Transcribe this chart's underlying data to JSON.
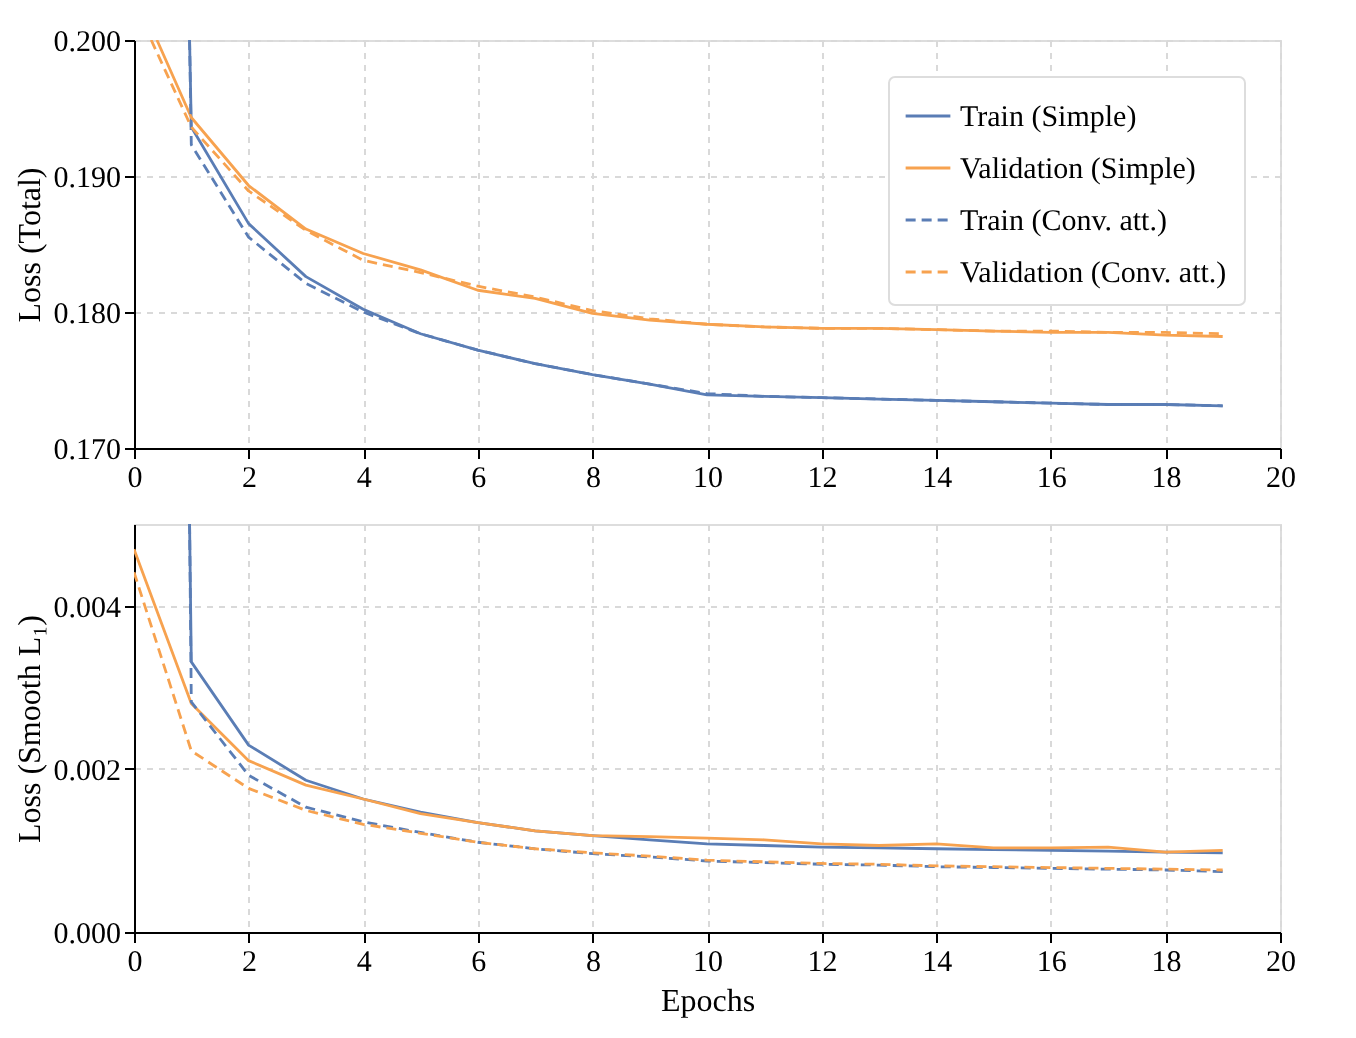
{
  "chart_data": [
    {
      "type": "line",
      "ylabel": "Loss (Total)",
      "xlim": [
        0,
        20
      ],
      "xticks": [
        0,
        2,
        4,
        6,
        8,
        10,
        12,
        14,
        16,
        18,
        20
      ],
      "ylim": [
        0.17,
        0.2
      ],
      "yticks": [
        {
          "value": 0.17,
          "label": "0.170"
        },
        {
          "value": 0.18,
          "label": "0.180"
        },
        {
          "value": 0.19,
          "label": "0.190"
        },
        {
          "value": 0.2,
          "label": "0.200"
        }
      ],
      "grid": true,
      "legend": "top right",
      "marker": "none",
      "series": [
        {
          "name": "Train (Simple)",
          "color": "#5a7db5",
          "line_style": "solid",
          "x": [
            0.97,
            1,
            2,
            3,
            4,
            5,
            6,
            7,
            8,
            9,
            10,
            11,
            12,
            13,
            14,
            15,
            16,
            17,
            18,
            19
          ],
          "values": [
            0.2,
            0.1936,
            0.1865,
            0.1826,
            0.1802,
            0.1784,
            0.1772,
            0.1762,
            0.1754,
            0.1747,
            0.1739,
            0.1738,
            0.1737,
            0.1736,
            0.1735,
            0.1734,
            0.1733,
            0.1732,
            0.1732,
            0.1731
          ]
        },
        {
          "name": "Validation (Simple)",
          "color": "#f7a24f",
          "line_style": "solid",
          "x": [
            0.4,
            1,
            2,
            3,
            4,
            5,
            6,
            7,
            8,
            9,
            10,
            11,
            12,
            13,
            14,
            15,
            16,
            17,
            18,
            19
          ],
          "values": [
            0.2,
            0.1943,
            0.1893,
            0.1861,
            0.1843,
            0.1831,
            0.1816,
            0.181,
            0.1799,
            0.1794,
            0.1791,
            0.1789,
            0.1788,
            0.1788,
            0.1787,
            0.1786,
            0.1785,
            0.1785,
            0.1783,
            0.1782
          ]
        },
        {
          "name": "Train (Conv. att.)",
          "color": "#5a7db5",
          "line_style": "dashed",
          "x": [
            0.97,
            1,
            2,
            3,
            4,
            5,
            6,
            7,
            8,
            9,
            10,
            11,
            12,
            13,
            14,
            15,
            16,
            17,
            18,
            19
          ],
          "values": [
            0.2,
            0.1923,
            0.1855,
            0.1821,
            0.18,
            0.1784,
            0.1772,
            0.1762,
            0.1754,
            0.1747,
            0.174,
            0.1738,
            0.1737,
            0.1736,
            0.1735,
            0.1734,
            0.1733,
            0.1732,
            0.1732,
            0.1731
          ]
        },
        {
          "name": "Validation (Conv. att.)",
          "color": "#f7a24f",
          "line_style": "dashed",
          "x": [
            0.3,
            1,
            2,
            3,
            4,
            5,
            6,
            7,
            8,
            9,
            10,
            11,
            12,
            13,
            14,
            15,
            16,
            17,
            18,
            19
          ],
          "values": [
            0.2,
            0.1936,
            0.1889,
            0.186,
            0.1838,
            0.1829,
            0.1819,
            0.1811,
            0.1801,
            0.1795,
            0.1791,
            0.1789,
            0.1788,
            0.1788,
            0.1787,
            0.1786,
            0.1786,
            0.1785,
            0.1785,
            0.1784
          ]
        }
      ]
    },
    {
      "type": "line",
      "xlabel": "Epochs",
      "ylabel": "Loss (Smooth L₁)",
      "xlim": [
        0,
        20
      ],
      "xticks": [
        0,
        2,
        4,
        6,
        8,
        10,
        12,
        14,
        16,
        18,
        20
      ],
      "ylim": [
        0,
        0.005
      ],
      "yticks": [
        {
          "value": 0,
          "label": "0.000"
        },
        {
          "value": 0.002,
          "label": "0.002"
        },
        {
          "value": 0.004,
          "label": "0.004"
        }
      ],
      "grid": true,
      "marker": "none",
      "series": [
        {
          "color": "#5a7db5",
          "line_style": "solid",
          "x": [
            0.97,
            1,
            2,
            3,
            4,
            5,
            6,
            7,
            8,
            9,
            10,
            11,
            12,
            13,
            14,
            15,
            16,
            17,
            18,
            19
          ],
          "values": [
            0.005,
            0.00331,
            0.00229,
            0.00186,
            0.00163,
            0.00147,
            0.00134,
            0.00124,
            0.00118,
            0.00113,
            0.00108,
            0.00106,
            0.00104,
            0.00103,
            0.00102,
            0.00101,
            0.001,
            0.00099,
            0.00098,
            0.00097
          ]
        },
        {
          "color": "#f7a24f",
          "line_style": "solid",
          "x": [
            0,
            1,
            2,
            3,
            4,
            5,
            6,
            7,
            8,
            9,
            10,
            11,
            12,
            13,
            14,
            15,
            16,
            17,
            18,
            19
          ],
          "values": [
            0.00469,
            0.0028,
            0.0021,
            0.0018,
            0.00163,
            0.00145,
            0.00134,
            0.00124,
            0.00118,
            0.00117,
            0.00115,
            0.00113,
            0.00108,
            0.00106,
            0.00108,
            0.00103,
            0.00103,
            0.00104,
            0.00098,
            0.001
          ]
        },
        {
          "color": "#5a7db5",
          "line_style": "dashed",
          "x": [
            0.97,
            1,
            2,
            3,
            4,
            5,
            6,
            7,
            8,
            9,
            10,
            11,
            12,
            13,
            14,
            15,
            16,
            17,
            18,
            19
          ],
          "values": [
            0.005,
            0.00282,
            0.00192,
            0.00153,
            0.00135,
            0.00122,
            0.0011,
            0.00102,
            0.00096,
            0.00092,
            0.00087,
            0.00085,
            0.00083,
            0.00082,
            0.0008,
            0.00079,
            0.00078,
            0.00077,
            0.00076,
            0.00074
          ]
        },
        {
          "color": "#f7a24f",
          "line_style": "dashed",
          "x": [
            0,
            1,
            2,
            3,
            4,
            5,
            6,
            7,
            8,
            9,
            10,
            11,
            12,
            13,
            14,
            15,
            16,
            17,
            18,
            19
          ],
          "values": [
            0.00441,
            0.00222,
            0.00176,
            0.00149,
            0.00132,
            0.00121,
            0.0011,
            0.00102,
            0.00097,
            0.00093,
            0.00088,
            0.00086,
            0.00084,
            0.00083,
            0.00081,
            0.0008,
            0.00079,
            0.00078,
            0.00077,
            0.00076
          ]
        }
      ]
    }
  ]
}
